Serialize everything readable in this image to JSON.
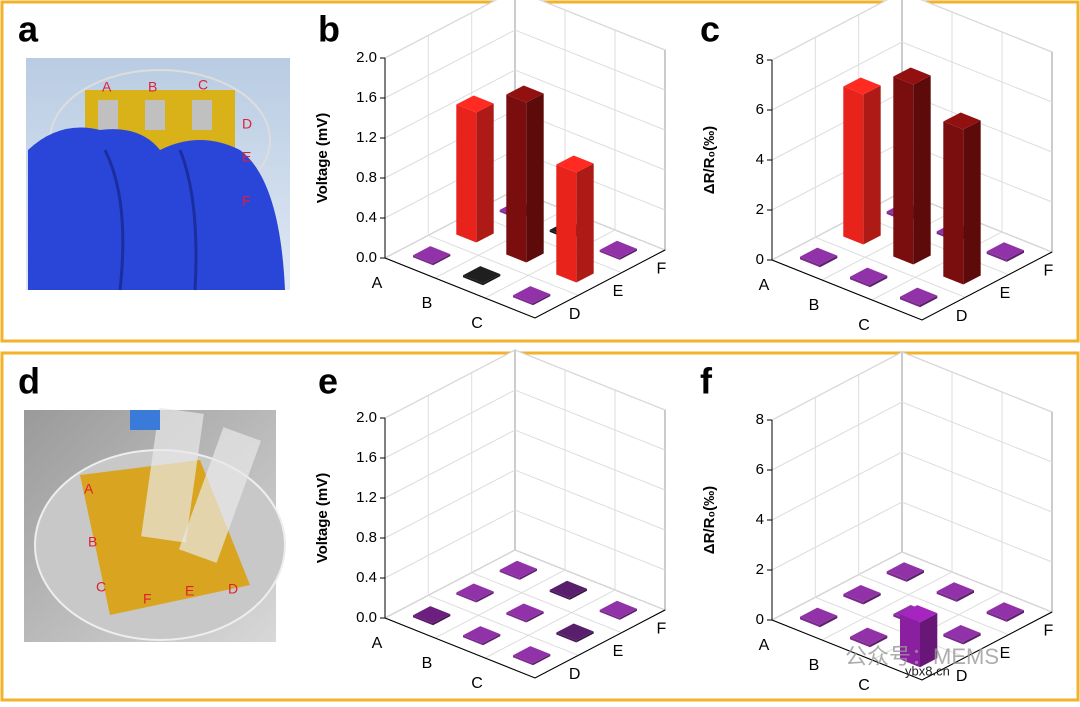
{
  "panel_labels": [
    "a",
    "b",
    "c",
    "d",
    "e",
    "f"
  ],
  "photo_a_labels": [
    "A",
    "B",
    "C",
    "D",
    "E",
    "F"
  ],
  "photo_d_labels": [
    "A",
    "B",
    "C",
    "F",
    "E",
    "D"
  ],
  "watermark": {
    "text": "公众号：MEMS",
    "site": "ybx8.cn"
  },
  "chart_data": [
    {
      "type": "bar3d",
      "zlabel": "Voltage (mV)",
      "x_categories": [
        "A",
        "B",
        "C"
      ],
      "y_categories": [
        "D",
        "E",
        "F"
      ],
      "values": [
        [
          0.02,
          1.3,
          0.02
        ],
        [
          0.02,
          1.6,
          0.02
        ],
        [
          0.02,
          1.1,
          0.02
        ]
      ],
      "colors": [
        [
          "#7a2a8c",
          "#e8231c",
          "#7a2a8c"
        ],
        [
          "#1a1a1a",
          "#7a0d0d",
          "#1a1a1a"
        ],
        [
          "#7a2a8c",
          "#e8231c",
          "#7a2a8c"
        ]
      ],
      "zlim": [
        0,
        2
      ],
      "zticks": [
        {
          "value": 0,
          "label": "0.0"
        },
        0.4,
        0.8,
        1.2,
        1.6,
        {
          "value": 2,
          "label": "2.0"
        }
      ],
      "grid": true
    },
    {
      "type": "bar3d",
      "zlabel": "ΔR/R₀(‰)",
      "x_categories": [
        "A",
        "B",
        "C"
      ],
      "y_categories": [
        "D",
        "E",
        "F"
      ],
      "values": [
        [
          0.1,
          6,
          0.1
        ],
        [
          0.1,
          7.2,
          0.1
        ],
        [
          0.1,
          6.2,
          0.1
        ]
      ],
      "colors": [
        [
          "#7a2a8c",
          "#e8231c",
          "#7a2a8c"
        ],
        [
          "#7a2a8c",
          "#7a0d0d",
          "#7a2a8c"
        ],
        [
          "#7a2a8c",
          "#7a0d0d",
          "#7a2a8c"
        ]
      ],
      "zlim": [
        0,
        8
      ],
      "zticks": [
        0,
        2,
        4,
        6,
        8
      ],
      "grid": true
    },
    {
      "type": "bar3d",
      "zlabel": "Voltage (mV)",
      "x_categories": [
        "A",
        "B",
        "C"
      ],
      "y_categories": [
        "D",
        "E",
        "F"
      ],
      "values": [
        [
          0.02,
          0.02,
          0.02
        ],
        [
          0.02,
          0.02,
          0.02
        ],
        [
          0.02,
          0.02,
          0.02
        ]
      ],
      "colors": [
        [
          "#5a1a6a",
          "#7a2a8c",
          "#7a2a8c"
        ],
        [
          "#7a2a8c",
          "#7a2a8c",
          "#4a1a5a"
        ],
        [
          "#7a2a8c",
          "#4a1a5a",
          "#7a2a8c"
        ]
      ],
      "zlim": [
        0,
        2
      ],
      "zticks": [
        {
          "value": 0,
          "label": "0.0"
        },
        0.4,
        0.8,
        1.2,
        1.6,
        {
          "value": 2,
          "label": "2.0"
        }
      ],
      "grid": true
    },
    {
      "type": "bar3d",
      "zlabel": "ΔR/R₀(‰)",
      "x_categories": [
        "A",
        "B",
        "C"
      ],
      "y_categories": [
        "D",
        "E",
        "F"
      ],
      "values": [
        [
          0.1,
          0.1,
          0.1
        ],
        [
          0.1,
          0.1,
          0.1
        ],
        [
          1.8,
          0.1,
          0.1
        ]
      ],
      "colors": [
        [
          "#7a2a8c",
          "#7a2a8c",
          "#7a2a8c"
        ],
        [
          "#7a2a8c",
          "#7a2a8c",
          "#7a2a8c"
        ],
        [
          "#8a1fa0",
          "#7a2a8c",
          "#7a2a8c"
        ]
      ],
      "zlim": [
        0,
        8
      ],
      "zticks": [
        0,
        2,
        4,
        6,
        8
      ],
      "grid": true
    }
  ]
}
